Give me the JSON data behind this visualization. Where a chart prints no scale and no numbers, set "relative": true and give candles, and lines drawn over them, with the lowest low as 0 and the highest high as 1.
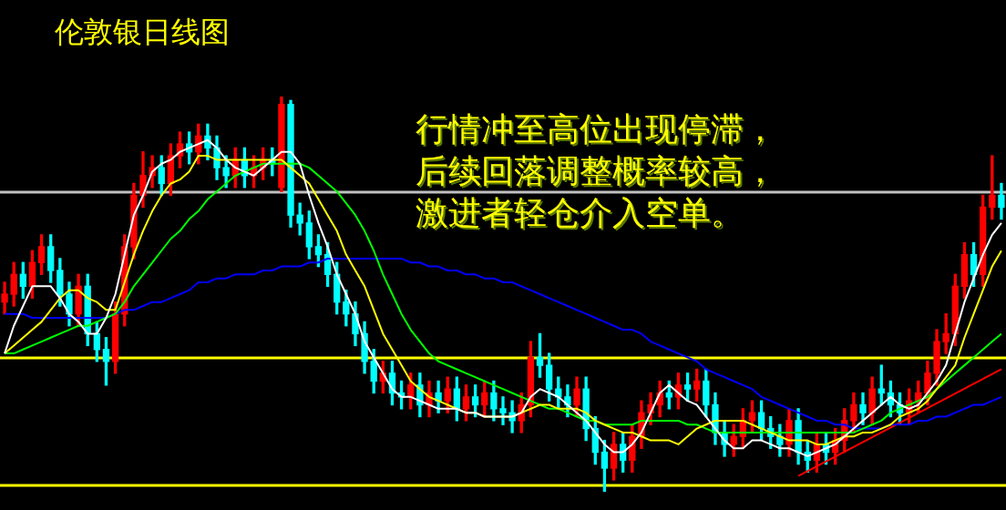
{
  "chart_data": {
    "type": "candlestick",
    "title": "伦敦银日线图",
    "annotations": [
      "行情冲至高位出现停滞，",
      "后续回落调整概率较高，",
      "激进者轻仓介入空单。"
    ],
    "relative": true,
    "categories": [
      null,
      null,
      null,
      null,
      null,
      null,
      null,
      null,
      null,
      null,
      null,
      null,
      null,
      null,
      null,
      null,
      null,
      null,
      null,
      null,
      null,
      null,
      null,
      null,
      null,
      null,
      null,
      null,
      null,
      null,
      null,
      null,
      null,
      null,
      null,
      null,
      null,
      null,
      null,
      null,
      null,
      null,
      null,
      null,
      null,
      null,
      null,
      null,
      null,
      null,
      null,
      null,
      null,
      null,
      null,
      null,
      null,
      null,
      null,
      null,
      null,
      null,
      null,
      null,
      null,
      null,
      null,
      null,
      null,
      null,
      null,
      null,
      null,
      null,
      null,
      null,
      null,
      null,
      null,
      null,
      null,
      null,
      null,
      null,
      null,
      null,
      null,
      null,
      null,
      null,
      null,
      null,
      null,
      null,
      null,
      null,
      null,
      null,
      null,
      null,
      null,
      null,
      null,
      null,
      null,
      null,
      null,
      null,
      null
    ],
    "ohlc": [
      [
        0.48,
        0.53,
        0.45,
        0.5
      ],
      [
        0.5,
        0.58,
        0.47,
        0.55
      ],
      [
        0.55,
        0.58,
        0.49,
        0.52
      ],
      [
        0.52,
        0.61,
        0.49,
        0.58
      ],
      [
        0.58,
        0.65,
        0.55,
        0.62
      ],
      [
        0.62,
        0.65,
        0.53,
        0.56
      ],
      [
        0.56,
        0.59,
        0.47,
        0.5
      ],
      [
        0.5,
        0.53,
        0.42,
        0.45
      ],
      [
        0.45,
        0.55,
        0.42,
        0.52
      ],
      [
        0.52,
        0.55,
        0.37,
        0.4
      ],
      [
        0.4,
        0.43,
        0.33,
        0.36
      ],
      [
        0.36,
        0.39,
        0.27,
        0.33
      ],
      [
        0.33,
        0.48,
        0.3,
        0.45
      ],
      [
        0.45,
        0.65,
        0.42,
        0.62
      ],
      [
        0.62,
        0.78,
        0.59,
        0.75
      ],
      [
        0.75,
        0.86,
        0.72,
        0.8
      ],
      [
        0.8,
        0.85,
        0.77,
        0.82
      ],
      [
        0.82,
        0.85,
        0.75,
        0.78
      ],
      [
        0.78,
        0.88,
        0.75,
        0.85
      ],
      [
        0.85,
        0.91,
        0.82,
        0.88
      ],
      [
        0.88,
        0.91,
        0.83,
        0.86
      ],
      [
        0.86,
        0.93,
        0.83,
        0.9
      ],
      [
        0.9,
        0.93,
        0.84,
        0.87
      ],
      [
        0.87,
        0.9,
        0.79,
        0.82
      ],
      [
        0.82,
        0.85,
        0.77,
        0.8
      ],
      [
        0.8,
        0.87,
        0.77,
        0.84
      ],
      [
        0.84,
        0.87,
        0.77,
        0.8
      ],
      [
        0.8,
        0.85,
        0.77,
        0.82
      ],
      [
        0.82,
        0.87,
        0.79,
        0.84
      ],
      [
        0.84,
        0.87,
        0.8,
        0.83
      ],
      [
        0.77,
        1,
        0.76,
        0.98
      ],
      [
        0.98,
        0.99,
        0.67,
        0.7
      ],
      [
        0.7,
        0.73,
        0.65,
        0.68
      ],
      [
        0.68,
        0.71,
        0.59,
        0.62
      ],
      [
        0.62,
        0.65,
        0.57,
        0.6
      ],
      [
        0.6,
        0.63,
        0.52,
        0.55
      ],
      [
        0.55,
        0.58,
        0.45,
        0.48
      ],
      [
        0.48,
        0.51,
        0.42,
        0.45
      ],
      [
        0.45,
        0.48,
        0.37,
        0.4
      ],
      [
        0.4,
        0.43,
        0.3,
        0.33
      ],
      [
        0.33,
        0.36,
        0.25,
        0.28
      ],
      [
        0.28,
        0.33,
        0.25,
        0.3
      ],
      [
        0.3,
        0.33,
        0.22,
        0.25
      ],
      [
        0.25,
        0.28,
        0.21,
        0.24
      ],
      [
        0.24,
        0.3,
        0.21,
        0.27
      ],
      [
        0.27,
        0.3,
        0.19,
        0.22
      ],
      [
        0.22,
        0.28,
        0.19,
        0.25
      ],
      [
        0.25,
        0.28,
        0.2,
        0.23
      ],
      [
        0.23,
        0.29,
        0.2,
        0.26
      ],
      [
        0.26,
        0.29,
        0.18,
        0.21
      ],
      [
        0.21,
        0.27,
        0.18,
        0.24
      ],
      [
        0.24,
        0.27,
        0.19,
        0.22
      ],
      [
        0.22,
        0.28,
        0.19,
        0.25
      ],
      [
        0.25,
        0.28,
        0.18,
        0.21
      ],
      [
        0.21,
        0.24,
        0.17,
        0.2
      ],
      [
        0.2,
        0.23,
        0.15,
        0.18
      ],
      [
        0.18,
        0.25,
        0.15,
        0.22
      ],
      [
        0.22,
        0.38,
        0.19,
        0.34
      ],
      [
        0.34,
        0.4,
        0.29,
        0.32
      ],
      [
        0.32,
        0.35,
        0.23,
        0.26
      ],
      [
        0.26,
        0.29,
        0.21,
        0.24
      ],
      [
        0.24,
        0.27,
        0.19,
        0.22
      ],
      [
        0.22,
        0.29,
        0.19,
        0.26
      ],
      [
        0.26,
        0.29,
        0.13,
        0.16
      ],
      [
        0.16,
        0.19,
        0.07,
        0.1
      ],
      [
        0.1,
        0.13,
        0,
        0.06
      ],
      [
        0.06,
        0.15,
        0.03,
        0.12
      ],
      [
        0.12,
        0.15,
        0.05,
        0.08
      ],
      [
        0.08,
        0.17,
        0.05,
        0.14
      ],
      [
        0.14,
        0.23,
        0.11,
        0.2
      ],
      [
        0.2,
        0.25,
        0.17,
        0.22
      ],
      [
        0.22,
        0.28,
        0.19,
        0.25
      ],
      [
        0.25,
        0.28,
        0.21,
        0.24
      ],
      [
        0.24,
        0.3,
        0.21,
        0.27
      ],
      [
        0.27,
        0.3,
        0.23,
        0.26
      ],
      [
        0.26,
        0.31,
        0.23,
        0.28
      ],
      [
        0.28,
        0.31,
        0.19,
        0.22
      ],
      [
        0.22,
        0.25,
        0.12,
        0.15
      ],
      [
        0.15,
        0.18,
        0.09,
        0.12
      ],
      [
        0.12,
        0.17,
        0.09,
        0.14
      ],
      [
        0.14,
        0.21,
        0.11,
        0.18
      ],
      [
        0.18,
        0.23,
        0.15,
        0.2
      ],
      [
        0.2,
        0.23,
        0.13,
        0.16
      ],
      [
        0.16,
        0.19,
        0.11,
        0.14
      ],
      [
        0.14,
        0.17,
        0.09,
        0.12
      ],
      [
        0.12,
        0.21,
        0.09,
        0.18
      ],
      [
        0.18,
        0.21,
        0.07,
        0.1
      ],
      [
        0.1,
        0.13,
        0.05,
        0.08
      ],
      [
        0.08,
        0.15,
        0.05,
        0.12
      ],
      [
        0.12,
        0.15,
        0.07,
        0.1
      ],
      [
        0.1,
        0.16,
        0.07,
        0.13
      ],
      [
        0.13,
        0.21,
        0.1,
        0.18
      ],
      [
        0.18,
        0.25,
        0.15,
        0.22
      ],
      [
        0.22,
        0.25,
        0.17,
        0.2
      ],
      [
        0.2,
        0.29,
        0.17,
        0.26
      ],
      [
        0.26,
        0.32,
        0.22,
        0.25
      ],
      [
        0.25,
        0.28,
        0.19,
        0.22
      ],
      [
        0.22,
        0.25,
        0.17,
        0.2
      ],
      [
        0.2,
        0.26,
        0.17,
        0.23
      ],
      [
        0.23,
        0.28,
        0.2,
        0.25
      ],
      [
        0.25,
        0.33,
        0.22,
        0.3
      ],
      [
        0.3,
        0.41,
        0.27,
        0.38
      ],
      [
        0.38,
        0.45,
        0.35,
        0.4
      ],
      [
        0.4,
        0.55,
        0.37,
        0.52
      ],
      [
        0.52,
        0.63,
        0.49,
        0.6
      ],
      [
        0.6,
        0.63,
        0.52,
        0.55
      ],
      [
        0.55,
        0.75,
        0.52,
        0.72
      ],
      [
        0.72,
        0.85,
        0.69,
        0.75
      ],
      [
        0.75,
        0.78,
        0.69,
        0.72
      ]
    ],
    "colors": [
      "#ff0000",
      "#ff0000",
      "#00ffff",
      "#ff0000",
      "#ff0000",
      "#00ffff",
      "#00ffff",
      "#00ffff",
      "#ff0000",
      "#00ffff",
      "#00ffff",
      "#00ffff",
      "#ff0000",
      "#ff0000",
      "#ff0000",
      "#ff0000",
      "#ff0000",
      "#00ffff",
      "#ff0000",
      "#ff0000",
      "#00ffff",
      "#ff0000",
      "#00ffff",
      "#00ffff",
      "#00ffff",
      "#ff0000",
      "#00ffff",
      "#ff0000",
      "#ff0000",
      "#00ffff",
      "#ff0000",
      "#00ffff",
      "#00ffff",
      "#00ffff",
      "#00ffff",
      "#00ffff",
      "#00ffff",
      "#00ffff",
      "#00ffff",
      "#00ffff",
      "#00ffff",
      "#ff0000",
      "#00ffff",
      "#00ffff",
      "#ff0000",
      "#00ffff",
      "#ff0000",
      "#00ffff",
      "#ff0000",
      "#00ffff",
      "#ff0000",
      "#00ffff",
      "#ff0000",
      "#00ffff",
      "#00ffff",
      "#00ffff",
      "#ff0000",
      "#ff0000",
      "#00ffff",
      "#00ffff",
      "#00ffff",
      "#00ffff",
      "#ff0000",
      "#00ffff",
      "#00ffff",
      "#00ffff",
      "#ff0000",
      "#00ffff",
      "#ff0000",
      "#ff0000",
      "#ff0000",
      "#ff0000",
      "#00ffff",
      "#ff0000",
      "#00ffff",
      "#ff0000",
      "#00ffff",
      "#00ffff",
      "#00ffff",
      "#ff0000",
      "#ff0000",
      "#ff0000",
      "#00ffff",
      "#00ffff",
      "#00ffff",
      "#ff0000",
      "#00ffff",
      "#00ffff",
      "#ff0000",
      "#00ffff",
      "#ff0000",
      "#ff0000",
      "#ff0000",
      "#00ffff",
      "#ff0000",
      "#00ffff",
      "#00ffff",
      "#00ffff",
      "#ff0000",
      "#ff0000",
      "#ff0000",
      "#ff0000",
      "#ff0000",
      "#ff0000",
      "#ff0000",
      "#00ffff",
      "#ff0000",
      "#ff0000",
      "#00ffff"
    ],
    "ref_lines": [
      {
        "axis": "y",
        "value": 0.76,
        "color": "#c0c0c0"
      },
      {
        "axis": "y",
        "value": 0.34,
        "color": "#ffff00"
      },
      {
        "axis": "y",
        "value": 0.02,
        "color": "#ffff00"
      }
    ],
    "series": [
      {
        "type": "line",
        "color": "#ffffff",
        "values": [
          0.35,
          0.42,
          0.47,
          0.52,
          0.52,
          0.52,
          0.49,
          0.45,
          0.43,
          0.4,
          0.4,
          0.44,
          0.5,
          0.6,
          0.7,
          0.75,
          0.81,
          0.83,
          0.84,
          0.86,
          0.87,
          0.88,
          0.89,
          0.87,
          0.84,
          0.82,
          0.81,
          0.8,
          0.82,
          0.84,
          0.86,
          0.86,
          0.83,
          0.75,
          0.68,
          0.62,
          0.55,
          0.5,
          0.45,
          0.38,
          0.34,
          0.3,
          0.26,
          0.24,
          0.24,
          0.23,
          0.22,
          0.21,
          0.21,
          0.21,
          0.2,
          0.2,
          0.19,
          0.19,
          0.19,
          0.19,
          0.2,
          0.24,
          0.26,
          0.25,
          0.24,
          0.22,
          0.2,
          0.18,
          0.15,
          0.12,
          0.1,
          0.1,
          0.12,
          0.15,
          0.2,
          0.25,
          0.27,
          0.25,
          0.23,
          0.22,
          0.19,
          0.16,
          0.13,
          0.11,
          0.11,
          0.13,
          0.13,
          0.12,
          0.11,
          0.11,
          0.1,
          0.09,
          0.1,
          0.11,
          0.12,
          0.14,
          0.16,
          0.18,
          0.2,
          0.22,
          0.24,
          0.22,
          0.21,
          0.22,
          0.25,
          0.28,
          0.32,
          0.4,
          0.48,
          0.54,
          0.6,
          0.65,
          0.68
        ]
      },
      {
        "type": "line",
        "color": "#ffff00",
        "values": [
          0.35,
          0.37,
          0.39,
          0.41,
          0.43,
          0.46,
          0.49,
          0.51,
          0.51,
          0.49,
          0.48,
          0.46,
          0.46,
          0.53,
          0.6,
          0.66,
          0.71,
          0.75,
          0.78,
          0.79,
          0.81,
          0.85,
          0.85,
          0.84,
          0.84,
          0.84,
          0.84,
          0.84,
          0.84,
          0.84,
          0.84,
          0.82,
          0.8,
          0.78,
          0.74,
          0.7,
          0.66,
          0.6,
          0.56,
          0.52,
          0.46,
          0.4,
          0.36,
          0.32,
          0.28,
          0.26,
          0.24,
          0.23,
          0.22,
          0.21,
          0.2,
          0.2,
          0.19,
          0.19,
          0.19,
          0.19,
          0.2,
          0.21,
          0.22,
          0.22,
          0.21,
          0.21,
          0.21,
          0.2,
          0.18,
          0.17,
          0.16,
          0.15,
          0.15,
          0.14,
          0.13,
          0.13,
          0.13,
          0.12,
          0.14,
          0.16,
          0.17,
          0.18,
          0.18,
          0.18,
          0.18,
          0.17,
          0.16,
          0.15,
          0.14,
          0.13,
          0.13,
          0.13,
          0.12,
          0.12,
          0.13,
          0.14,
          0.14,
          0.15,
          0.15,
          0.16,
          0.17,
          0.19,
          0.2,
          0.21,
          0.23,
          0.26,
          0.29,
          0.32,
          0.39,
          0.45,
          0.51,
          0.57,
          0.61
        ]
      },
      {
        "type": "line",
        "color": "#00ff00",
        "values": [
          0.35,
          0.35,
          0.36,
          0.37,
          0.38,
          0.39,
          0.4,
          0.41,
          0.42,
          0.42,
          0.43,
          0.44,
          0.45,
          0.48,
          0.52,
          0.55,
          0.58,
          0.61,
          0.64,
          0.66,
          0.69,
          0.71,
          0.74,
          0.76,
          0.78,
          0.8,
          0.81,
          0.82,
          0.83,
          0.83,
          0.83,
          0.83,
          0.83,
          0.82,
          0.8,
          0.78,
          0.76,
          0.73,
          0.7,
          0.66,
          0.61,
          0.55,
          0.5,
          0.45,
          0.41,
          0.38,
          0.35,
          0.33,
          0.32,
          0.31,
          0.3,
          0.29,
          0.28,
          0.27,
          0.26,
          0.25,
          0.24,
          0.23,
          0.22,
          0.21,
          0.21,
          0.2,
          0.19,
          0.18,
          0.18,
          0.17,
          0.17,
          0.17,
          0.17,
          0.18,
          0.18,
          0.18,
          0.18,
          0.18,
          0.17,
          0.17,
          0.16,
          0.15,
          0.15,
          0.15,
          0.15,
          0.15,
          0.15,
          0.15,
          0.15,
          0.15,
          0.15,
          0.15,
          0.15,
          0.15,
          0.15,
          0.15,
          0.15,
          0.16,
          0.17,
          0.18,
          0.2,
          0.21,
          0.22,
          0.23,
          0.24,
          0.26,
          0.28,
          0.3,
          0.32,
          0.34,
          0.36,
          0.38,
          0.4
        ]
      },
      {
        "type": "line",
        "color": "#0000ff",
        "values": [
          0.45,
          0.45,
          0.45,
          0.44,
          0.44,
          0.44,
          0.44,
          0.44,
          0.44,
          0.44,
          0.44,
          0.44,
          0.45,
          0.46,
          0.46,
          0.47,
          0.48,
          0.48,
          0.49,
          0.5,
          0.51,
          0.53,
          0.53,
          0.54,
          0.54,
          0.55,
          0.55,
          0.55,
          0.56,
          0.56,
          0.57,
          0.57,
          0.57,
          0.58,
          0.58,
          0.59,
          0.59,
          0.59,
          0.59,
          0.59,
          0.59,
          0.59,
          0.59,
          0.59,
          0.58,
          0.58,
          0.57,
          0.57,
          0.56,
          0.56,
          0.55,
          0.55,
          0.54,
          0.54,
          0.53,
          0.53,
          0.52,
          0.51,
          0.5,
          0.49,
          0.48,
          0.47,
          0.46,
          0.45,
          0.44,
          0.43,
          0.42,
          0.41,
          0.41,
          0.4,
          0.38,
          0.37,
          0.36,
          0.35,
          0.34,
          0.33,
          0.31,
          0.3,
          0.29,
          0.28,
          0.27,
          0.26,
          0.24,
          0.23,
          0.22,
          0.21,
          0.2,
          0.19,
          0.18,
          0.18,
          0.17,
          0.17,
          0.16,
          0.16,
          0.16,
          0.16,
          0.17,
          0.17,
          0.17,
          0.18,
          0.18,
          0.19,
          0.19,
          0.2,
          0.21,
          0.22,
          0.22,
          0.23,
          0.24
        ]
      },
      {
        "type": "line",
        "color": "#ff0000",
        "values": [
          null,
          null,
          null,
          null,
          null,
          null,
          null,
          null,
          null,
          null,
          null,
          null,
          null,
          null,
          null,
          null,
          null,
          null,
          null,
          null,
          null,
          null,
          null,
          null,
          null,
          null,
          null,
          null,
          null,
          null,
          null,
          null,
          null,
          null,
          null,
          null,
          null,
          null,
          null,
          null,
          null,
          null,
          null,
          null,
          null,
          null,
          null,
          null,
          null,
          null,
          null,
          null,
          null,
          null,
          null,
          null,
          null,
          null,
          null,
          null,
          null,
          null,
          null,
          null,
          null,
          null,
          null,
          null,
          null,
          null,
          null,
          null,
          null,
          null,
          null,
          null,
          null,
          null,
          null,
          null,
          null,
          null,
          null,
          null,
          null,
          null,
          0.04,
          null,
          null,
          null,
          null,
          null,
          null,
          null,
          null,
          null,
          null,
          null,
          null,
          null,
          null,
          null,
          null,
          null,
          null,
          null,
          null,
          null,
          0.31
        ]
      }
    ]
  }
}
